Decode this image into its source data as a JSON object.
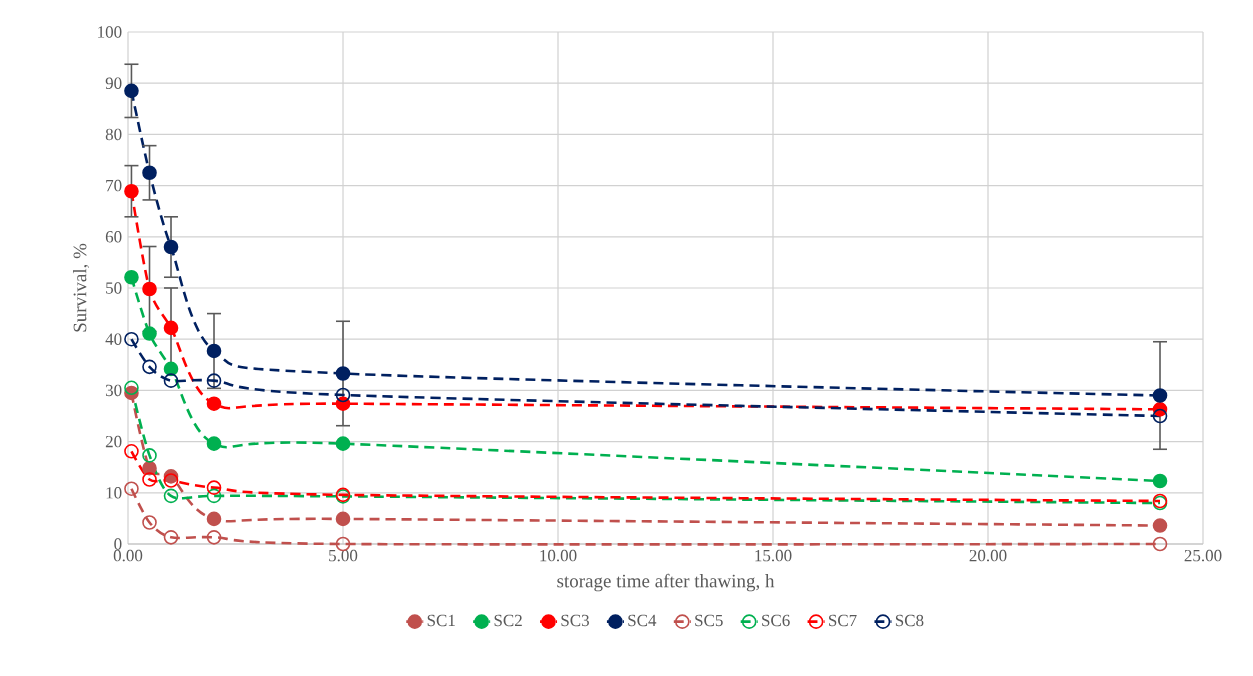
{
  "chart_data": {
    "type": "line",
    "xlabel": "storage time after thawing, h",
    "ylabel": "Survival, %",
    "x": [
      0.08,
      0.5,
      1,
      2,
      5,
      24
    ],
    "xlim": [
      0,
      25
    ],
    "xticks": [
      {
        "value": 0,
        "label": "0.00"
      },
      {
        "value": 5,
        "label": "5.00"
      },
      {
        "value": 10,
        "label": "10.00"
      },
      {
        "value": 15,
        "label": "15.00"
      },
      {
        "value": 20,
        "label": "20.00"
      },
      {
        "value": 25,
        "label": "25.00"
      }
    ],
    "ylim": [
      0,
      100
    ],
    "yticks": [
      0,
      10,
      20,
      30,
      40,
      50,
      60,
      70,
      80,
      90,
      100
    ],
    "grid": true,
    "legend": "bottom",
    "line_style": "dashed",
    "series": [
      {
        "name": "SC1",
        "color": "#c0504d",
        "marker": "circle",
        "values": [
          29.5,
          14.8,
          13.2,
          4.9,
          4.9,
          3.6
        ]
      },
      {
        "name": "SC2",
        "color": "#00b050",
        "marker": "circle",
        "values": [
          52.1,
          41.1,
          34.2,
          19.6,
          19.6,
          12.3
        ]
      },
      {
        "name": "SC3",
        "color": "#ff0000",
        "marker": "circle",
        "values": [
          68.9,
          49.8,
          42.2,
          27.4,
          27.4,
          26.3
        ],
        "errors": [
          5,
          8.3,
          7.8,
          null,
          null,
          null
        ]
      },
      {
        "name": "SC4",
        "color": "#002060",
        "marker": "circle",
        "values": [
          88.5,
          72.5,
          58,
          37.7,
          33.3,
          29
        ],
        "errors": [
          5.2,
          5.3,
          5.9,
          7.3,
          10.2,
          10.5
        ]
      },
      {
        "name": "SC5",
        "color": "#c0504d",
        "marker": "circle_open",
        "values": [
          10.8,
          4.2,
          1.3,
          1.3,
          0,
          0
        ]
      },
      {
        "name": "SC6",
        "color": "#00b050",
        "marker": "circle_open",
        "values": [
          30.5,
          17.3,
          9.4,
          9.4,
          9.3,
          8
        ]
      },
      {
        "name": "SC7",
        "color": "#ff0000",
        "marker": "circle_open",
        "values": [
          18.1,
          12.6,
          12.4,
          11,
          9.6,
          8.4
        ]
      },
      {
        "name": "SC8",
        "color": "#002060",
        "marker": "circle_open",
        "values": [
          40,
          34.6,
          31.9,
          31.9,
          29.1,
          25
        ]
      }
    ]
  }
}
